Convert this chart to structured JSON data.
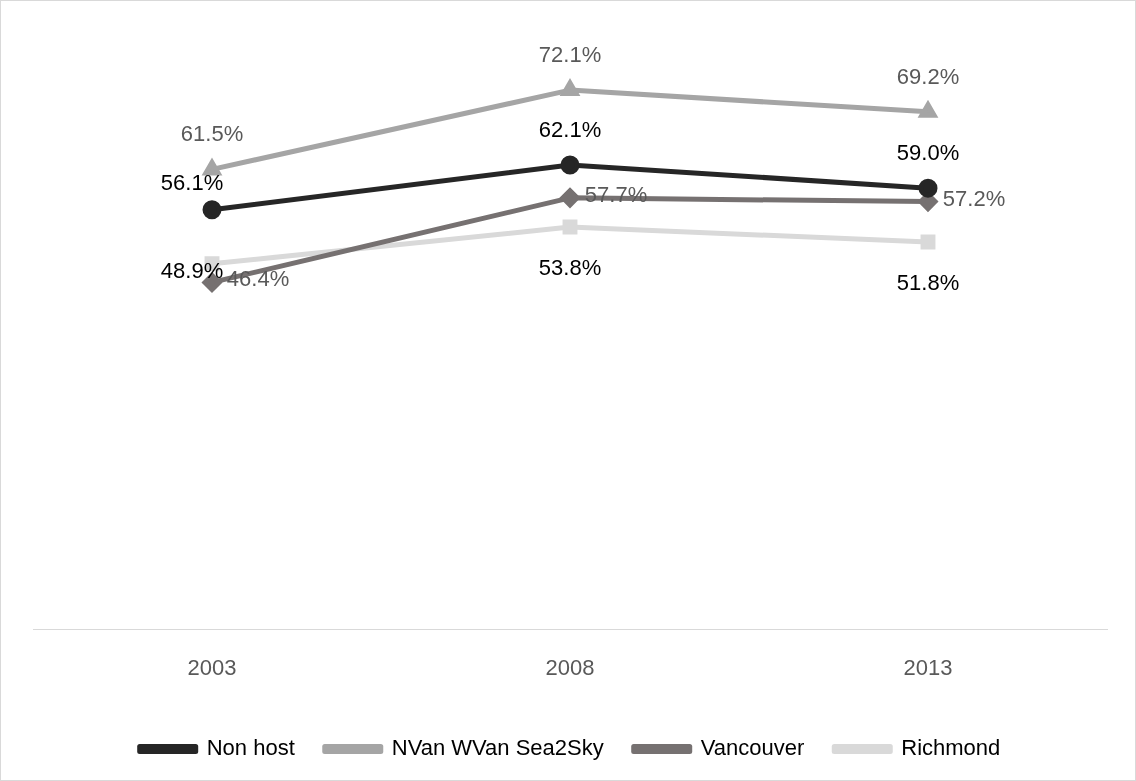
{
  "chart_data": {
    "type": "line",
    "categories": [
      "2003",
      "2008",
      "2013"
    ],
    "series": [
      {
        "name": "Non host",
        "color": "#262626",
        "marker": "circle",
        "values": [
          56.1,
          62.1,
          59.0
        ],
        "value_labels": [
          "56.1%",
          "62.1%",
          "59.0%"
        ]
      },
      {
        "name": "NVan WVan Sea2Sky",
        "color": "#a5a5a5",
        "marker": "triangle",
        "values": [
          61.5,
          72.1,
          69.2
        ],
        "value_labels": [
          "61.5%",
          "72.1%",
          "69.2%"
        ]
      },
      {
        "name": "Vancouver",
        "color": "#767171",
        "marker": "diamond",
        "values": [
          46.4,
          57.7,
          57.2
        ],
        "value_labels": [
          "46.4%",
          "57.7%",
          "57.2%"
        ]
      },
      {
        "name": "Richmond",
        "color": "#d9d9d9",
        "marker": "square",
        "values": [
          48.9,
          53.8,
          51.8
        ],
        "value_labels": [
          "48.9%",
          "53.8%",
          "51.8%"
        ]
      }
    ],
    "tick_labels": "x",
    "grid": false,
    "legend": "bottom",
    "line_style": "solid"
  }
}
